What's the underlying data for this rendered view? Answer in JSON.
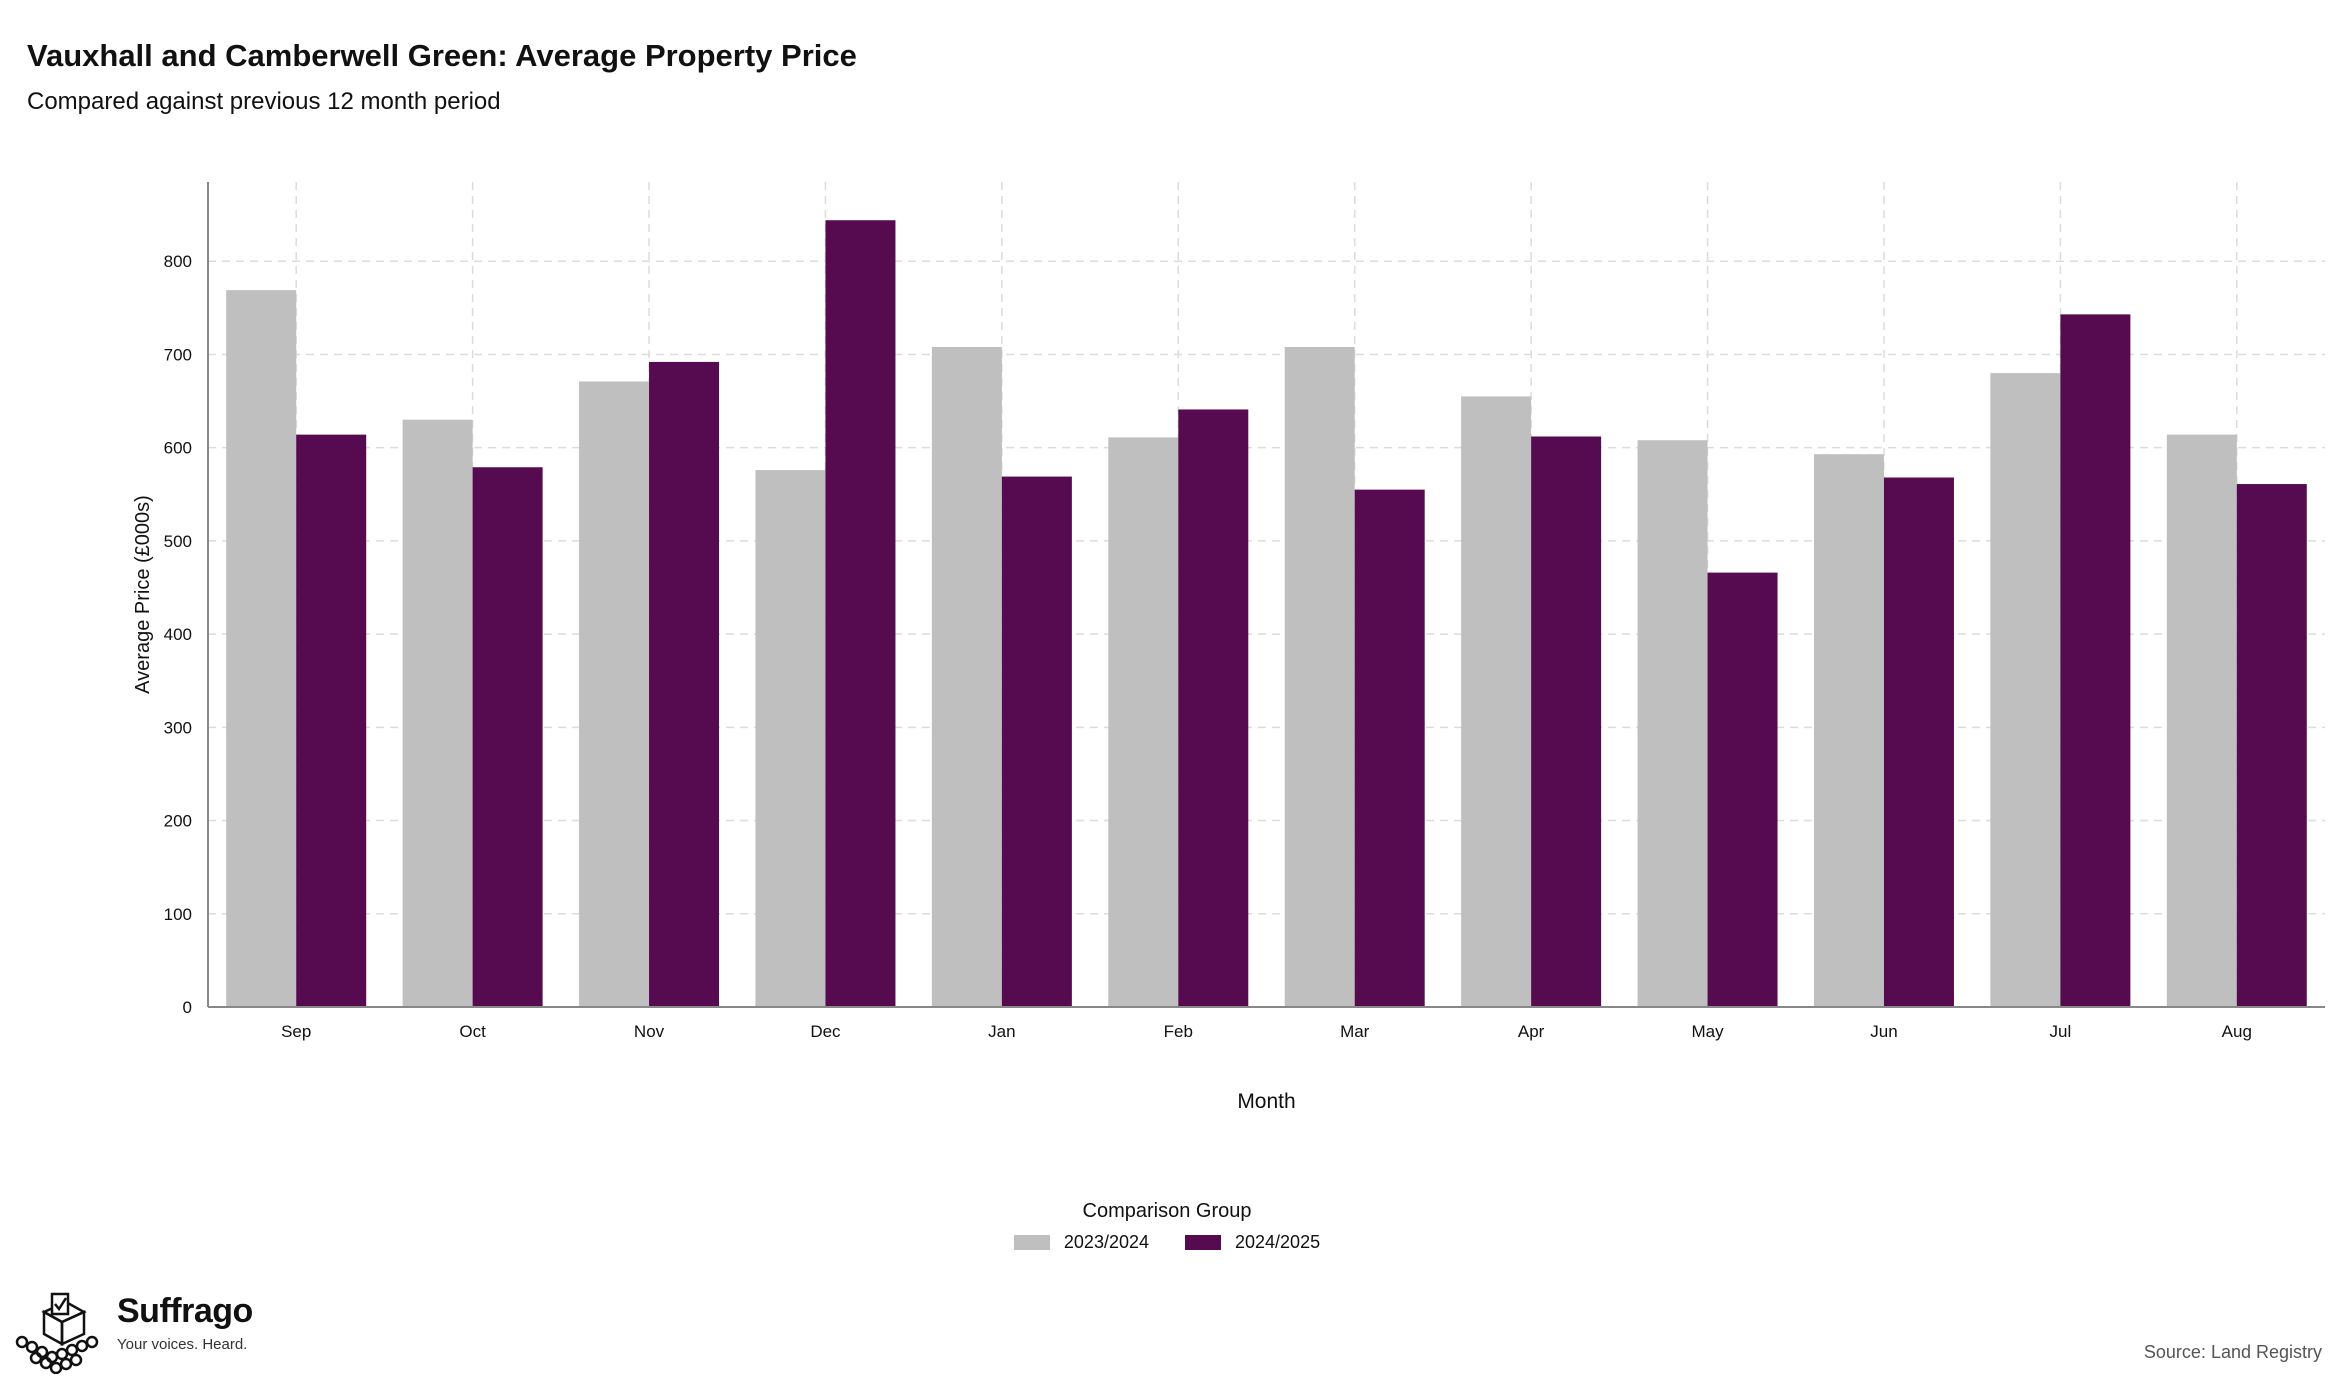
{
  "header": {
    "title": "Vauxhall and Camberwell Green: Average Property Price",
    "subtitle": "Compared against previous 12 month period"
  },
  "legend": {
    "title": "Comparison Group",
    "items": [
      {
        "label": "2023/2024",
        "color": "#bfbfbf"
      },
      {
        "label": "2024/2025",
        "color": "#560b51"
      }
    ]
  },
  "footer": {
    "brand_name": "Suffrago",
    "brand_tagline": "Your voices. Heard.",
    "source": "Source: Land Registry"
  },
  "chart_data": {
    "type": "bar",
    "title": "Vauxhall and Camberwell Green: Average Property Price",
    "subtitle": "Compared against previous 12 month period",
    "xlabel": "Month",
    "ylabel": "Average Price (£000s)",
    "ylim": [
      0,
      885
    ],
    "yticks": [
      0,
      100,
      200,
      300,
      400,
      500,
      600,
      700,
      800
    ],
    "grid": true,
    "legend_position": "bottom",
    "categories": [
      "Sep",
      "Oct",
      "Nov",
      "Dec",
      "Jan",
      "Feb",
      "Mar",
      "Apr",
      "May",
      "Jun",
      "Jul",
      "Aug"
    ],
    "series": [
      {
        "name": "2023/2024",
        "color": "#bfbfbf",
        "values": [
          769,
          630,
          671,
          576,
          708,
          611,
          708,
          655,
          608,
          593,
          680,
          614
        ]
      },
      {
        "name": "2024/2025",
        "color": "#560b51",
        "values": [
          614,
          579,
          692,
          844,
          569,
          641,
          555,
          612,
          466,
          568,
          743,
          561
        ]
      }
    ]
  }
}
